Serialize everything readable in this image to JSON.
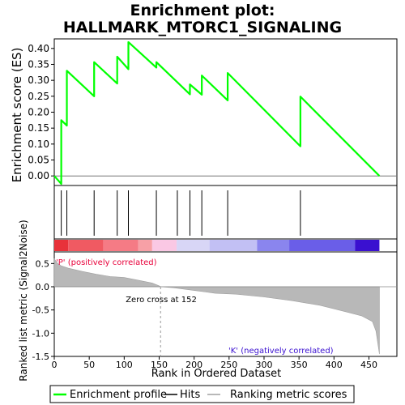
{
  "chart_data": {
    "type": "line",
    "title": "Enrichment plot:",
    "subtitle": "HALLMARK_MTORC1_SIGNALING",
    "top_panel": {
      "ylabel": "Enrichment score (ES)",
      "ylim": [
        -0.03,
        0.43
      ],
      "yticks": [
        "0.00",
        "0.05",
        "0.10",
        "0.15",
        "0.20",
        "0.25",
        "0.30",
        "0.35",
        "0.40"
      ],
      "series": [
        {
          "name": "Enrichment profile",
          "color": "#00ff00",
          "x": [
            0,
            10,
            10,
            18,
            18,
            57,
            57,
            90,
            90,
            106,
            106,
            146,
            146,
            194,
            194,
            211,
            211,
            248,
            248,
            352,
            352,
            465
          ],
          "y": [
            0.0,
            -0.025,
            0.175,
            0.158,
            0.33,
            0.25,
            0.357,
            0.29,
            0.374,
            0.335,
            0.42,
            0.34,
            0.357,
            0.256,
            0.287,
            0.255,
            0.315,
            0.237,
            0.323,
            0.093,
            0.249,
            0.0
          ]
        }
      ]
    },
    "hits": {
      "name": "Hits",
      "positions": [
        10,
        18,
        57,
        90,
        106,
        146,
        176,
        194,
        211,
        248,
        352
      ]
    },
    "heatmap_bar": {
      "label_positive": "'P' (positively correlated)",
      "label_negative": "'K' (negatively correlated)",
      "bins": [
        {
          "from": 0,
          "to": 20,
          "color": "#e8323a"
        },
        {
          "from": 20,
          "to": 70,
          "color": "#f05a62"
        },
        {
          "from": 70,
          "to": 120,
          "color": "#f57b85"
        },
        {
          "from": 120,
          "to": 140,
          "color": "#f7a0a6"
        },
        {
          "from": 140,
          "to": 175,
          "color": "#fac8e4"
        },
        {
          "from": 175,
          "to": 222,
          "color": "#d8d6f6"
        },
        {
          "from": 222,
          "to": 290,
          "color": "#c2c0f4"
        },
        {
          "from": 290,
          "to": 336,
          "color": "#8a85ee"
        },
        {
          "from": 336,
          "to": 430,
          "color": "#6a5ee8"
        },
        {
          "from": 430,
          "to": 465,
          "color": "#3a10d0"
        }
      ]
    },
    "bottom_panel": {
      "ylabel": "Ranked list metric (Signal2Noise)",
      "ylim": [
        -1.5,
        0.75
      ],
      "yticks": [
        "0.5",
        "0.0",
        "-0.5",
        "-1.0",
        "-1.5"
      ],
      "zero_cross_label": "Zero cross at 152",
      "zero_cross": 152,
      "metric_points": {
        "name": "Ranking metric scores",
        "x": [
          0,
          5,
          10,
          20,
          40,
          60,
          80,
          100,
          120,
          140,
          150,
          152,
          170,
          200,
          230,
          260,
          300,
          340,
          380,
          420,
          440,
          455,
          460,
          465
        ],
        "y": [
          0.6,
          0.5,
          0.45,
          0.4,
          0.33,
          0.27,
          0.22,
          0.2,
          0.14,
          0.08,
          0.02,
          0.0,
          -0.02,
          -0.08,
          -0.14,
          -0.16,
          -0.22,
          -0.3,
          -0.4,
          -0.55,
          -0.63,
          -0.75,
          -0.95,
          -1.45
        ]
      }
    },
    "xlabel": "Rank in Ordered Dataset",
    "xlim": [
      0,
      490
    ],
    "xticks": [
      "0",
      "50",
      "100",
      "150",
      "200",
      "250",
      "300",
      "350",
      "400",
      "450"
    ],
    "legend": {
      "placement": "bottom",
      "items": [
        "Enrichment profile",
        "Hits",
        "Ranking metric scores"
      ]
    }
  }
}
